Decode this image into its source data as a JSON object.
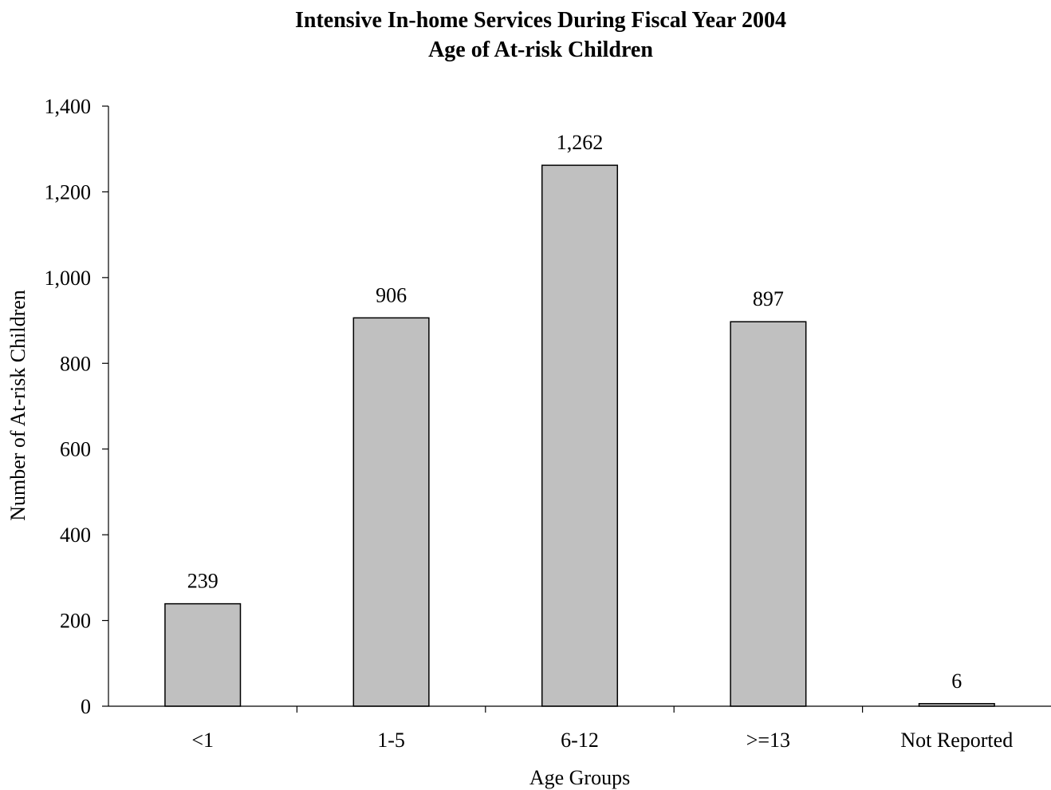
{
  "chart_data": {
    "type": "bar",
    "title": "Intensive In-home Services During Fiscal Year 2004",
    "subtitle": "Age of At-risk Children",
    "xlabel": "Age Groups",
    "ylabel": "Number of At-risk Children",
    "categories": [
      "<1",
      "1-5",
      "6-12",
      ">=13",
      "Not Reported"
    ],
    "values": [
      239,
      906,
      1262,
      897,
      6
    ],
    "data_labels": [
      "239",
      "906",
      "1,262",
      "897",
      "6"
    ],
    "ylim": [
      0,
      1400
    ],
    "yticks": [
      0,
      200,
      400,
      600,
      800,
      1000,
      1200,
      1400
    ],
    "ytick_labels": [
      "0",
      "200",
      "400",
      "600",
      "800",
      "1,000",
      "1,200",
      "1,400"
    ],
    "grid": false,
    "legend": "none",
    "colors": {
      "bar_fill": "#c0c0c0",
      "bar_stroke": "#000000",
      "axis": "#000000"
    }
  }
}
